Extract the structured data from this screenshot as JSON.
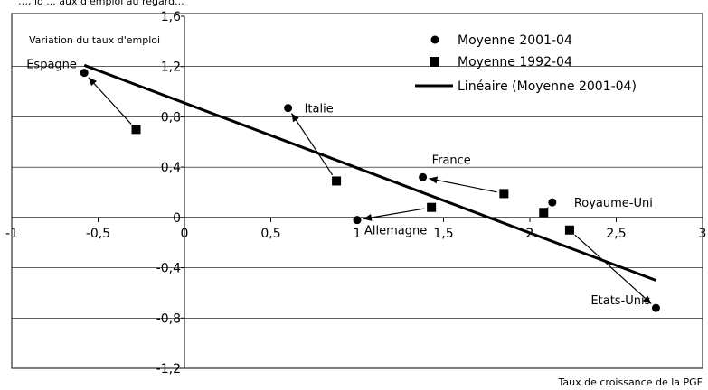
{
  "chart_data": {
    "type": "scatter",
    "title": "",
    "top_fragment": "…, lo ... aux d'emploi au regard...",
    "ylabel": "Variation du taux d'emploi",
    "xlabel": "Taux de croissance de la PGF",
    "xlim": [
      -1,
      3
    ],
    "ylim": [
      -1.2,
      1.6
    ],
    "x_ticks": [
      "-1",
      "-0,5",
      "0",
      "0,5",
      "1",
      "1,5",
      "2",
      "2,5",
      "3"
    ],
    "y_ticks": [
      "1,6",
      "1,2",
      "0,8",
      "0,4",
      "0",
      "-0,4",
      "-0,8",
      "-1,2"
    ],
    "grid": "horizontal",
    "legend_position": "top-right",
    "series": [
      {
        "name": "Moyenne 2001-04",
        "marker": "circle",
        "points": [
          {
            "label": "Espagne",
            "x": -0.58,
            "y": 1.15
          },
          {
            "label": "Italie",
            "x": 0.6,
            "y": 0.87
          },
          {
            "label": "France",
            "x": 1.38,
            "y": 0.32
          },
          {
            "label": "Allemagne",
            "x": 1.0,
            "y": -0.02
          },
          {
            "label": "Royaume-Uni",
            "x": 2.13,
            "y": 0.12
          },
          {
            "label": "Etats-Unis",
            "x": 2.73,
            "y": -0.72
          }
        ]
      },
      {
        "name": "Moyenne 1992-04",
        "marker": "square",
        "points": [
          {
            "label": "Espagne",
            "x": -0.28,
            "y": 0.7
          },
          {
            "label": "Italie",
            "x": 0.88,
            "y": 0.29
          },
          {
            "label": "France",
            "x": 1.85,
            "y": 0.19
          },
          {
            "label": "Allemagne",
            "x": 1.43,
            "y": 0.08
          },
          {
            "label": "Royaume-Uni",
            "x": 2.08,
            "y": 0.04
          },
          {
            "label": "Etats-Unis",
            "x": 2.23,
            "y": -0.1
          }
        ]
      }
    ],
    "trendline": {
      "name": "Linéaire (Moyenne 2001-04)",
      "from": {
        "x": -0.58,
        "y": 1.21
      },
      "to": {
        "x": 2.73,
        "y": -0.5
      }
    }
  }
}
